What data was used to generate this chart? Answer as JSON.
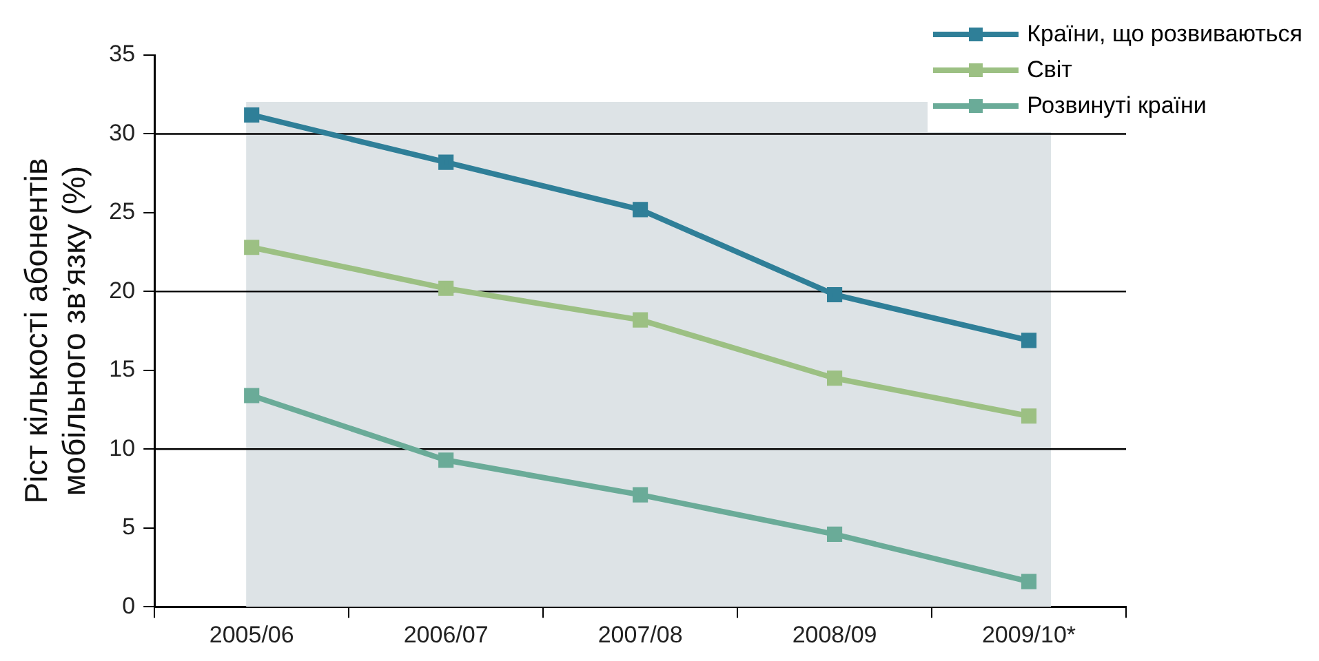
{
  "chart_data": {
    "type": "line",
    "ylabel": "Ріст кількості абонентів мобільного зв’язку (%)",
    "categories": [
      "2005/06",
      "2006/07",
      "2007/08",
      "2008/09",
      "2009/10*"
    ],
    "series": [
      {
        "name": "Країни, що розвиваються",
        "color": "#2f7f98",
        "values": [
          31.2,
          28.2,
          25.2,
          19.8,
          16.9
        ]
      },
      {
        "name": "Світ",
        "color": "#9cc083",
        "values": [
          22.8,
          20.2,
          18.2,
          14.5,
          12.1
        ]
      },
      {
        "name": "Розвинуті країни",
        "color": "#6aab98",
        "values": [
          13.4,
          9.3,
          7.1,
          4.6,
          1.6
        ]
      }
    ],
    "ylim": [
      0,
      35
    ],
    "yticks": [
      0,
      5,
      10,
      15,
      20,
      25,
      30,
      35
    ],
    "ref_lines": [
      {
        "axis": "y",
        "value": 10,
        "color": "#000000"
      },
      {
        "axis": "y",
        "value": 20,
        "color": "#000000"
      },
      {
        "axis": "y",
        "value": 30,
        "color": "#000000"
      }
    ],
    "bands": [
      {
        "axis": "x",
        "from": "2005/06",
        "to": "2009/10*",
        "color": "#dde3e6"
      }
    ],
    "grid": false,
    "legend": "top right",
    "marker": "square",
    "line_style": "solid"
  }
}
